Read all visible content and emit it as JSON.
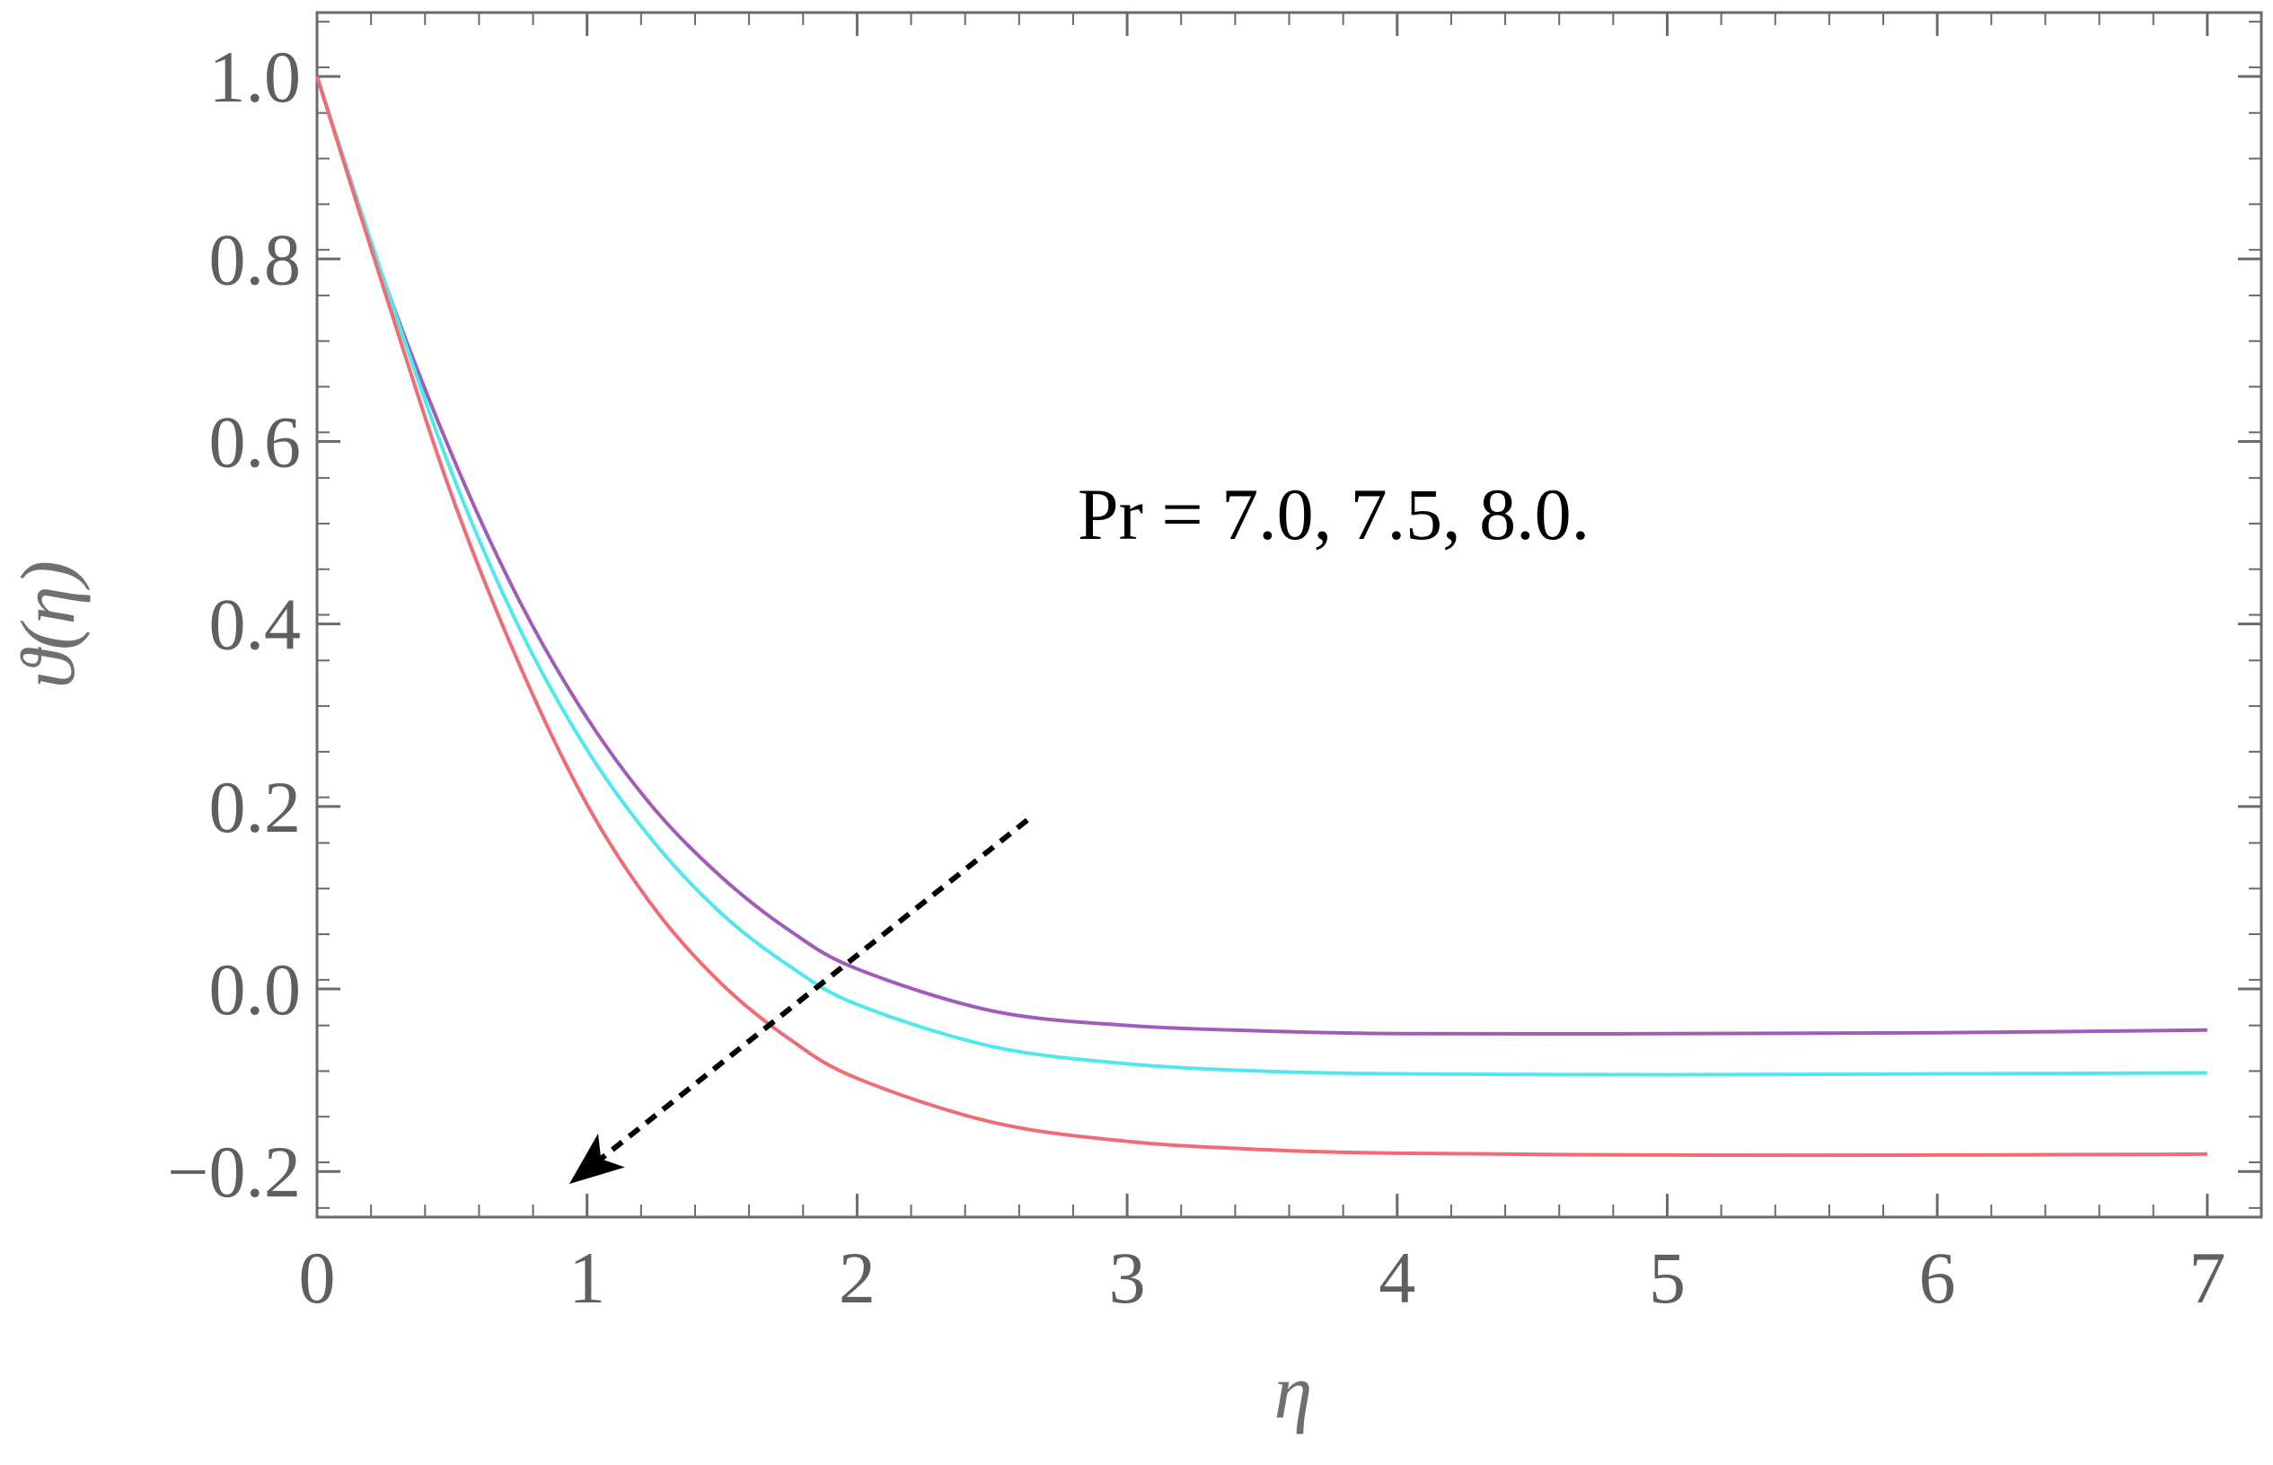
{
  "chart_data": {
    "type": "line",
    "xlabel": "η",
    "ylabel": "ϑ(η)",
    "xlim": [
      0,
      7.2
    ],
    "ylim": [
      -0.25,
      1.07
    ],
    "x_ticks": [
      0,
      1,
      2,
      3,
      4,
      5,
      6,
      7
    ],
    "x_tick_labels": [
      "0",
      "1",
      "2",
      "3",
      "4",
      "5",
      "6",
      "7"
    ],
    "y_ticks": [
      -0.2,
      0.0,
      0.2,
      0.4,
      0.6,
      0.8,
      1.0
    ],
    "y_tick_labels": [
      "−0.2",
      "0.0",
      "0.2",
      "0.4",
      "0.6",
      "0.8",
      "1.0"
    ],
    "grid": false,
    "annotation": "Pr = 7.0, 7.5, 8.0.",
    "arrow": {
      "from": [
        2.63,
        0.185
      ],
      "to": [
        0.95,
        -0.21
      ],
      "style": "dashed"
    },
    "x": [
      0,
      0.25,
      0.5,
      0.75,
      1.0,
      1.25,
      1.5,
      1.75,
      2.0,
      2.5,
      3.0,
      3.5,
      4.0,
      5.0,
      6.0,
      7.0
    ],
    "series": [
      {
        "color": "#a05cb8",
        "values": [
          1.0,
          0.775,
          0.585,
          0.425,
          0.297,
          0.197,
          0.122,
          0.064,
          0.022,
          -0.024,
          -0.04,
          -0.046,
          -0.049,
          -0.049,
          -0.048,
          -0.045
        ]
      },
      {
        "color": "#4fe8ee",
        "values": [
          1.0,
          0.775,
          0.565,
          0.395,
          0.262,
          0.16,
          0.082,
          0.025,
          -0.017,
          -0.063,
          -0.082,
          -0.09,
          -0.093,
          -0.094,
          -0.093,
          -0.092
        ]
      },
      {
        "color": "#f06b73",
        "values": [
          1.0,
          0.765,
          0.54,
          0.355,
          0.202,
          0.088,
          0.005,
          -0.055,
          -0.098,
          -0.146,
          -0.167,
          -0.176,
          -0.18,
          -0.182,
          -0.182,
          -0.181
        ]
      }
    ]
  }
}
